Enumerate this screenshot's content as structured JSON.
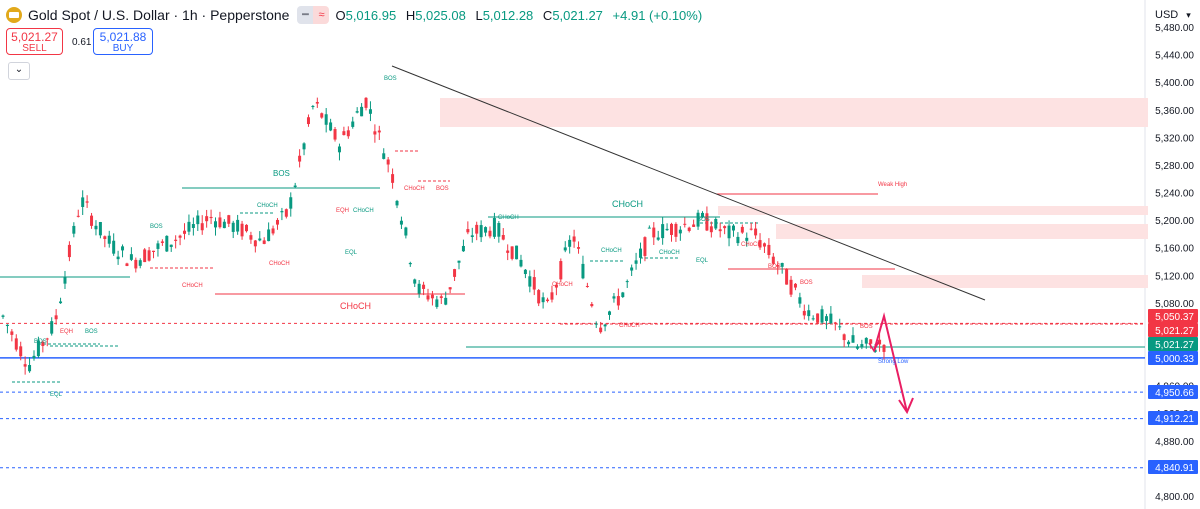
{
  "header": {
    "symbol_title": "Gold Spot / U.S. Dollar · 1h · Pepperstone",
    "ohlc": [
      {
        "label": "O",
        "value": "5,016.95"
      },
      {
        "label": "H",
        "value": "5,025.08"
      },
      {
        "label": "L",
        "value": "5,012.28"
      },
      {
        "label": "C",
        "value": "5,021.27"
      }
    ],
    "change": "+4.91 (+0.10%)"
  },
  "trade": {
    "sell_price": "5,021.27",
    "sell_label": "SELL",
    "spread": "0.61",
    "buy_price": "5,021.88",
    "buy_label": "BUY"
  },
  "currency": "USD",
  "colors": {
    "up": "#089981",
    "down": "#f23645",
    "accent": "#2962ff",
    "zone": "#fde2e2"
  },
  "price_axis": {
    "ticks": [
      "5,480.00",
      "5,440.00",
      "5,400.00",
      "5,360.00",
      "5,320.00",
      "5,280.00",
      "5,240.00",
      "5,200.00",
      "5,160.00",
      "5,120.00",
      "5,080.00",
      "5,040.00",
      "5,000.00",
      "4,960.00",
      "4,920.00",
      "4,880.00",
      "4,840.00",
      "4,800.00"
    ],
    "tags": [
      {
        "value": "5,050.37",
        "bg": "#f23645"
      },
      {
        "value": "5,021.27",
        "bg": "#f23645"
      },
      {
        "value": "5,021.27",
        "bg": "#089981"
      },
      {
        "value": "5,000.33",
        "bg": "#2962ff"
      },
      {
        "value": "4,950.66",
        "bg": "#2962ff"
      },
      {
        "value": "4,912.21",
        "bg": "#2962ff"
      },
      {
        "value": "4,840.91",
        "bg": "#2962ff"
      }
    ]
  },
  "chart_data": {
    "type": "candlestick",
    "y_range": [
      4800,
      5480
    ],
    "levels": [
      {
        "price": 5000.33,
        "style": "solid",
        "color": "#2962ff"
      },
      {
        "price": 4950.66,
        "style": "dashed",
        "color": "#2962ff"
      },
      {
        "price": 4912.21,
        "style": "dashed",
        "color": "#2962ff"
      },
      {
        "price": 4840.91,
        "style": "dashed",
        "color": "#2962ff"
      },
      {
        "price": 5050.37,
        "style": "dashed",
        "color": "#f23645"
      }
    ],
    "annotations": [
      {
        "text": "BOS",
        "kind": "green"
      },
      {
        "text": "BOS",
        "kind": "green"
      },
      {
        "text": "BOS",
        "kind": "green"
      },
      {
        "text": "BOS",
        "kind": "green"
      },
      {
        "text": "BOS",
        "kind": "green"
      },
      {
        "text": "BOS",
        "kind": "green"
      },
      {
        "text": "EQH",
        "kind": "red"
      },
      {
        "text": "EQH",
        "kind": "red"
      },
      {
        "text": "EQL",
        "kind": "green"
      },
      {
        "text": "EQL",
        "kind": "green"
      },
      {
        "text": "EQL",
        "kind": "green"
      },
      {
        "text": "CHoCH",
        "kind": "green"
      },
      {
        "text": "CHoCH",
        "kind": "green"
      },
      {
        "text": "CHoCH",
        "kind": "green"
      },
      {
        "text": "CHoCH",
        "kind": "green"
      },
      {
        "text": "CHoCH",
        "kind": "green"
      },
      {
        "text": "CHoCH",
        "kind": "green"
      },
      {
        "text": "CHoCH",
        "kind": "red"
      },
      {
        "text": "CHoCH",
        "kind": "red"
      },
      {
        "text": "CHoCH",
        "kind": "red"
      },
      {
        "text": "CHoCH",
        "kind": "red"
      },
      {
        "text": "CHoCH",
        "kind": "red"
      },
      {
        "text": "CHoCH",
        "kind": "red"
      },
      {
        "text": "CHoCH",
        "kind": "red"
      },
      {
        "text": "BOS",
        "kind": "red"
      },
      {
        "text": "BOS",
        "kind": "red"
      },
      {
        "text": "BOS",
        "kind": "red"
      },
      {
        "text": "BOS",
        "kind": "red"
      },
      {
        "text": "Weak High",
        "kind": "red"
      },
      {
        "text": "Strong Low",
        "kind": "blue"
      }
    ],
    "anchors": [
      [
        5005,
        5070,
        5000,
        5060
      ],
      [
        5040,
        5075,
        4975,
        4990
      ],
      [
        5075,
        5110,
        5040,
        5050
      ],
      [
        5180,
        5240,
        5160,
        5230
      ],
      [
        5180,
        5220,
        5150,
        5170
      ],
      [
        5100,
        5150,
        5090,
        5140
      ],
      [
        5190,
        5220,
        5150,
        5160
      ],
      [
        5190,
        5210,
        5170,
        5180
      ],
      [
        5215,
        5235,
        5195,
        5205
      ],
      [
        5160,
        5200,
        5150,
        5190
      ],
      [
        5150,
        5180,
        5130,
        5170
      ],
      [
        5200,
        5230,
        5180,
        5210
      ],
      [
        5380,
        5410,
        5360,
        5370
      ],
      [
        5320,
        5350,
        5290,
        5310
      ],
      [
        5380,
        5400,
        5350,
        5375
      ],
      [
        5280,
        5320,
        5250,
        5270
      ],
      [
        5100,
        5180,
        5080,
        5100
      ],
      [
        5070,
        5110,
        5060,
        5080
      ],
      [
        5170,
        5200,
        5150,
        5180
      ],
      [
        5200,
        5220,
        5180,
        5190
      ],
      [
        5150,
        5180,
        5120,
        5140
      ],
      [
        5065,
        5110,
        5055,
        5070
      ],
      [
        5160,
        5200,
        5140,
        5180
      ],
      [
        5060,
        5080,
        5030,
        5045
      ],
      [
        5070,
        5110,
        5060,
        5100
      ],
      [
        5150,
        5200,
        5120,
        5180
      ],
      [
        5180,
        5200,
        5170,
        5190
      ],
      [
        5230,
        5240,
        5180,
        5200
      ],
      [
        5210,
        5215,
        5170,
        5180
      ],
      [
        5190,
        5200,
        5170,
        5180
      ],
      [
        5150,
        5170,
        5120,
        5130
      ],
      [
        5080,
        5110,
        5060,
        5070
      ],
      [
        5120,
        5130,
        5040,
        5050
      ],
      [
        5040,
        5050,
        5010,
        5015
      ],
      [
        5020,
        5035,
        5000,
        5021
      ]
    ]
  }
}
